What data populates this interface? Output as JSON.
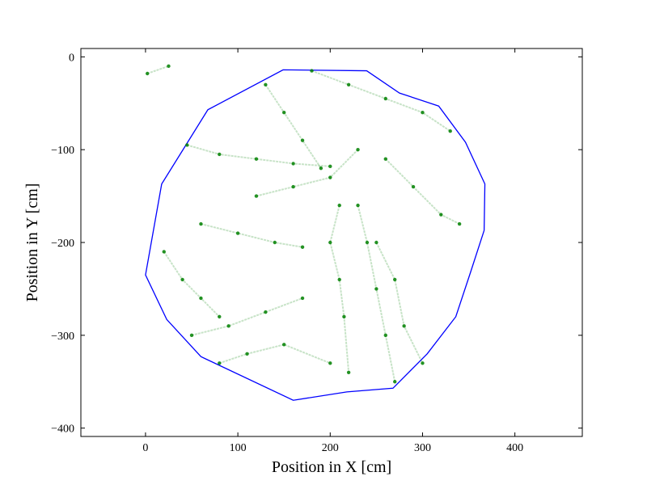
{
  "chart_data": {
    "type": "line",
    "xlabel": "Position in X [cm]",
    "ylabel": "Position in Y [cm]",
    "xlim": [
      -70,
      473
    ],
    "ylim": [
      -409,
      9
    ],
    "xticks": [
      0,
      100,
      200,
      300,
      400
    ],
    "yticks": [
      0,
      {
        "value": -100,
        "label": "−100"
      },
      {
        "value": -200,
        "label": "−200"
      },
      {
        "value": -300,
        "label": "−300"
      },
      {
        "value": -400,
        "label": "−400"
      }
    ],
    "series": [
      {
        "color": "#0000ff",
        "marker": false,
        "closed": true,
        "x": [
          0,
          17.5,
          67.5,
          149,
          239.5,
          275,
          317.5,
          346.5,
          367.5,
          366.7,
          352,
          336,
          305,
          268,
          218,
          160,
          60,
          23
        ],
        "y": [
          -235,
          -137,
          -57,
          -14,
          -15,
          -39,
          -53,
          -92,
          -137,
          -187,
          -232,
          -280,
          -320,
          -357,
          -361,
          -370,
          -323,
          -283
        ]
      },
      {
        "color": "#008000",
        "marker": true,
        "x": [
          45,
          80,
          120,
          160,
          200
        ],
        "y": [
          -95,
          -105,
          -110,
          -115,
          -118
        ]
      },
      {
        "color": "#008000",
        "marker": true,
        "x": [
          130,
          150,
          170,
          190
        ],
        "y": [
          -30,
          -60,
          -90,
          -120
        ]
      },
      {
        "color": "#008000",
        "marker": true,
        "x": [
          180,
          220,
          260,
          300,
          330
        ],
        "y": [
          -15,
          -30,
          -45,
          -60,
          -80
        ]
      },
      {
        "color": "#008000",
        "marker": true,
        "x": [
          210,
          200,
          210,
          215,
          220
        ],
        "y": [
          -160,
          -200,
          -240,
          -280,
          -340
        ]
      },
      {
        "color": "#008000",
        "marker": true,
        "x": [
          60,
          100,
          140,
          170
        ],
        "y": [
          -180,
          -190,
          -200,
          -205
        ]
      },
      {
        "color": "#008000",
        "marker": true,
        "x": [
          250,
          270,
          280,
          300
        ],
        "y": [
          -200,
          -240,
          -290,
          -330
        ]
      },
      {
        "color": "#008000",
        "marker": true,
        "x": [
          50,
          90,
          130,
          170
        ],
        "y": [
          -300,
          -290,
          -275,
          -260
        ]
      },
      {
        "color": "#008000",
        "marker": true,
        "x": [
          120,
          160,
          200,
          230
        ],
        "y": [
          -150,
          -140,
          -130,
          -100
        ]
      },
      {
        "color": "#008000",
        "marker": true,
        "x": [
          80,
          110,
          150,
          200
        ],
        "y": [
          -330,
          -320,
          -310,
          -330
        ]
      },
      {
        "color": "#008000",
        "marker": true,
        "x": [
          260,
          290,
          320,
          340
        ],
        "y": [
          -110,
          -140,
          -170,
          -180
        ]
      },
      {
        "color": "#008000",
        "marker": true,
        "x": [
          20,
          40,
          60,
          80
        ],
        "y": [
          -210,
          -240,
          -260,
          -280
        ]
      },
      {
        "color": "#008000",
        "marker": true,
        "x": [
          230,
          240,
          250,
          260,
          270
        ],
        "y": [
          -160,
          -200,
          -250,
          -300,
          -350
        ]
      },
      {
        "color": "#008000",
        "marker": true,
        "x": [
          2,
          25
        ],
        "y": [
          -18,
          -10
        ]
      }
    ]
  }
}
